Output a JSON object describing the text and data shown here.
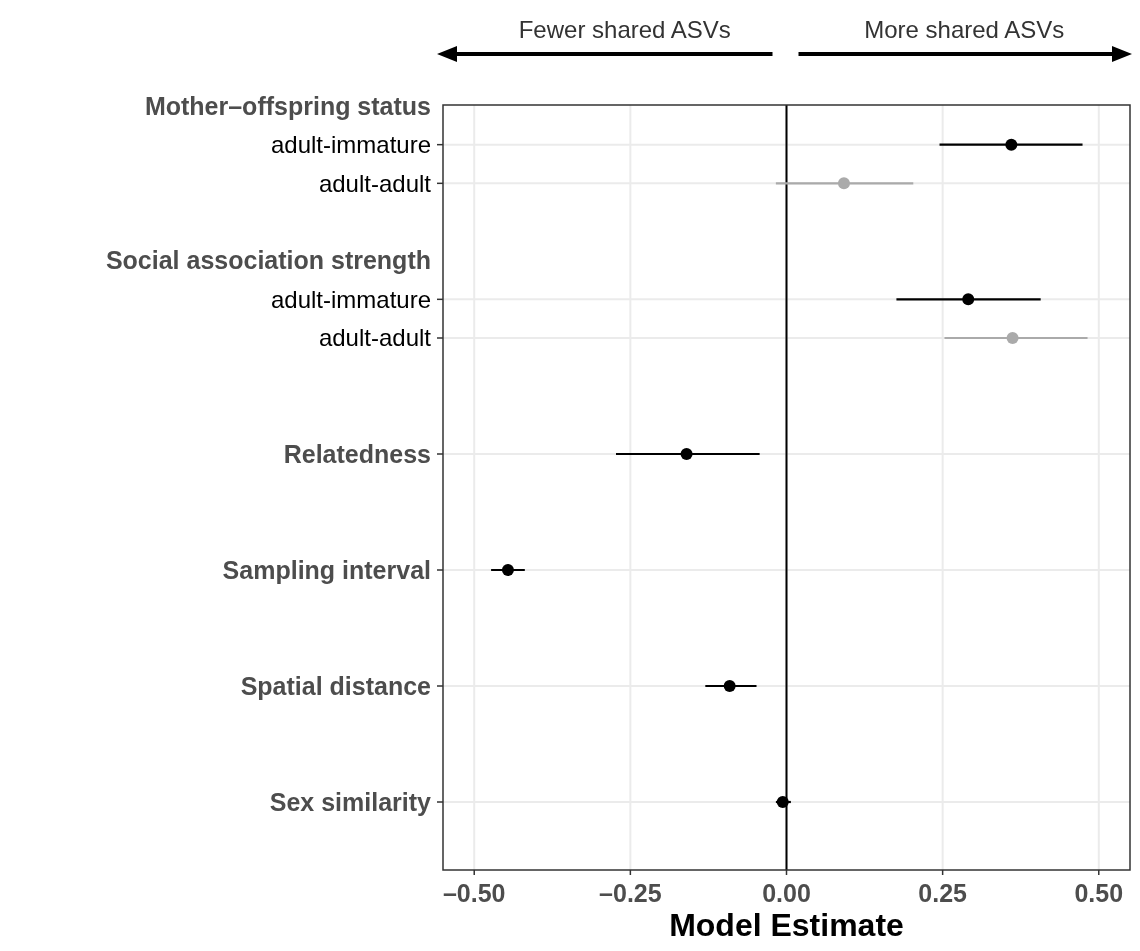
{
  "chart_data": {
    "type": "scatter",
    "orientation": "horizontal",
    "xlabel": "Model Estimate",
    "categories": [
      "Mother–offspring status",
      "adult-immature",
      "adult-adult",
      null,
      "Social association strength",
      "adult-immature",
      "adult-adult",
      null,
      null,
      "Relatedness",
      null,
      null,
      "Sampling interval",
      null,
      null,
      "Spatial distance",
      null,
      null,
      "Sex similarity"
    ],
    "series": [
      {
        "color": "#000000",
        "values": [
          null,
          0.36,
          null,
          null,
          null,
          0.291,
          null,
          null,
          null,
          -0.16,
          null,
          null,
          -0.446,
          null,
          null,
          -0.091,
          null,
          null,
          -0.006
        ],
        "errors": [
          null,
          [
            0.245,
            0.474
          ],
          null,
          null,
          null,
          [
            0.176,
            0.407
          ],
          null,
          null,
          null,
          [
            -0.273,
            -0.043
          ],
          null,
          null,
          [
            -0.473,
            -0.419
          ],
          null,
          null,
          [
            -0.13,
            -0.048
          ],
          null,
          null,
          [
            -0.017,
            0.007
          ]
        ]
      },
      {
        "color": "#aaaaaa",
        "values": [
          null,
          null,
          0.092,
          null,
          null,
          null,
          0.362,
          null,
          null,
          null,
          null,
          null,
          null,
          null,
          null,
          null,
          null,
          null,
          null
        ],
        "errors": [
          null,
          null,
          [
            -0.017,
            0.203
          ],
          null,
          null,
          null,
          [
            0.253,
            0.482
          ],
          null,
          null,
          null,
          null,
          null,
          null,
          null,
          null,
          null,
          null,
          null,
          null
        ]
      }
    ],
    "xlim": [
      -0.55,
      0.55
    ],
    "xticks": [
      {
        "value": -0.5,
        "label": "–0.50"
      },
      {
        "value": -0.25,
        "label": "–0.25"
      },
      {
        "value": 0,
        "label": "0.00"
      },
      {
        "value": 0.25,
        "label": "0.25"
      },
      {
        "value": 0.5,
        "label": "0.50"
      }
    ],
    "ref_lines": [
      {
        "axis": "x",
        "value": 0,
        "color": "#000000"
      }
    ],
    "annotations": [
      "Fewer shared ASVs",
      "More shared ASVs"
    ],
    "grid": true,
    "marker": "circle"
  }
}
